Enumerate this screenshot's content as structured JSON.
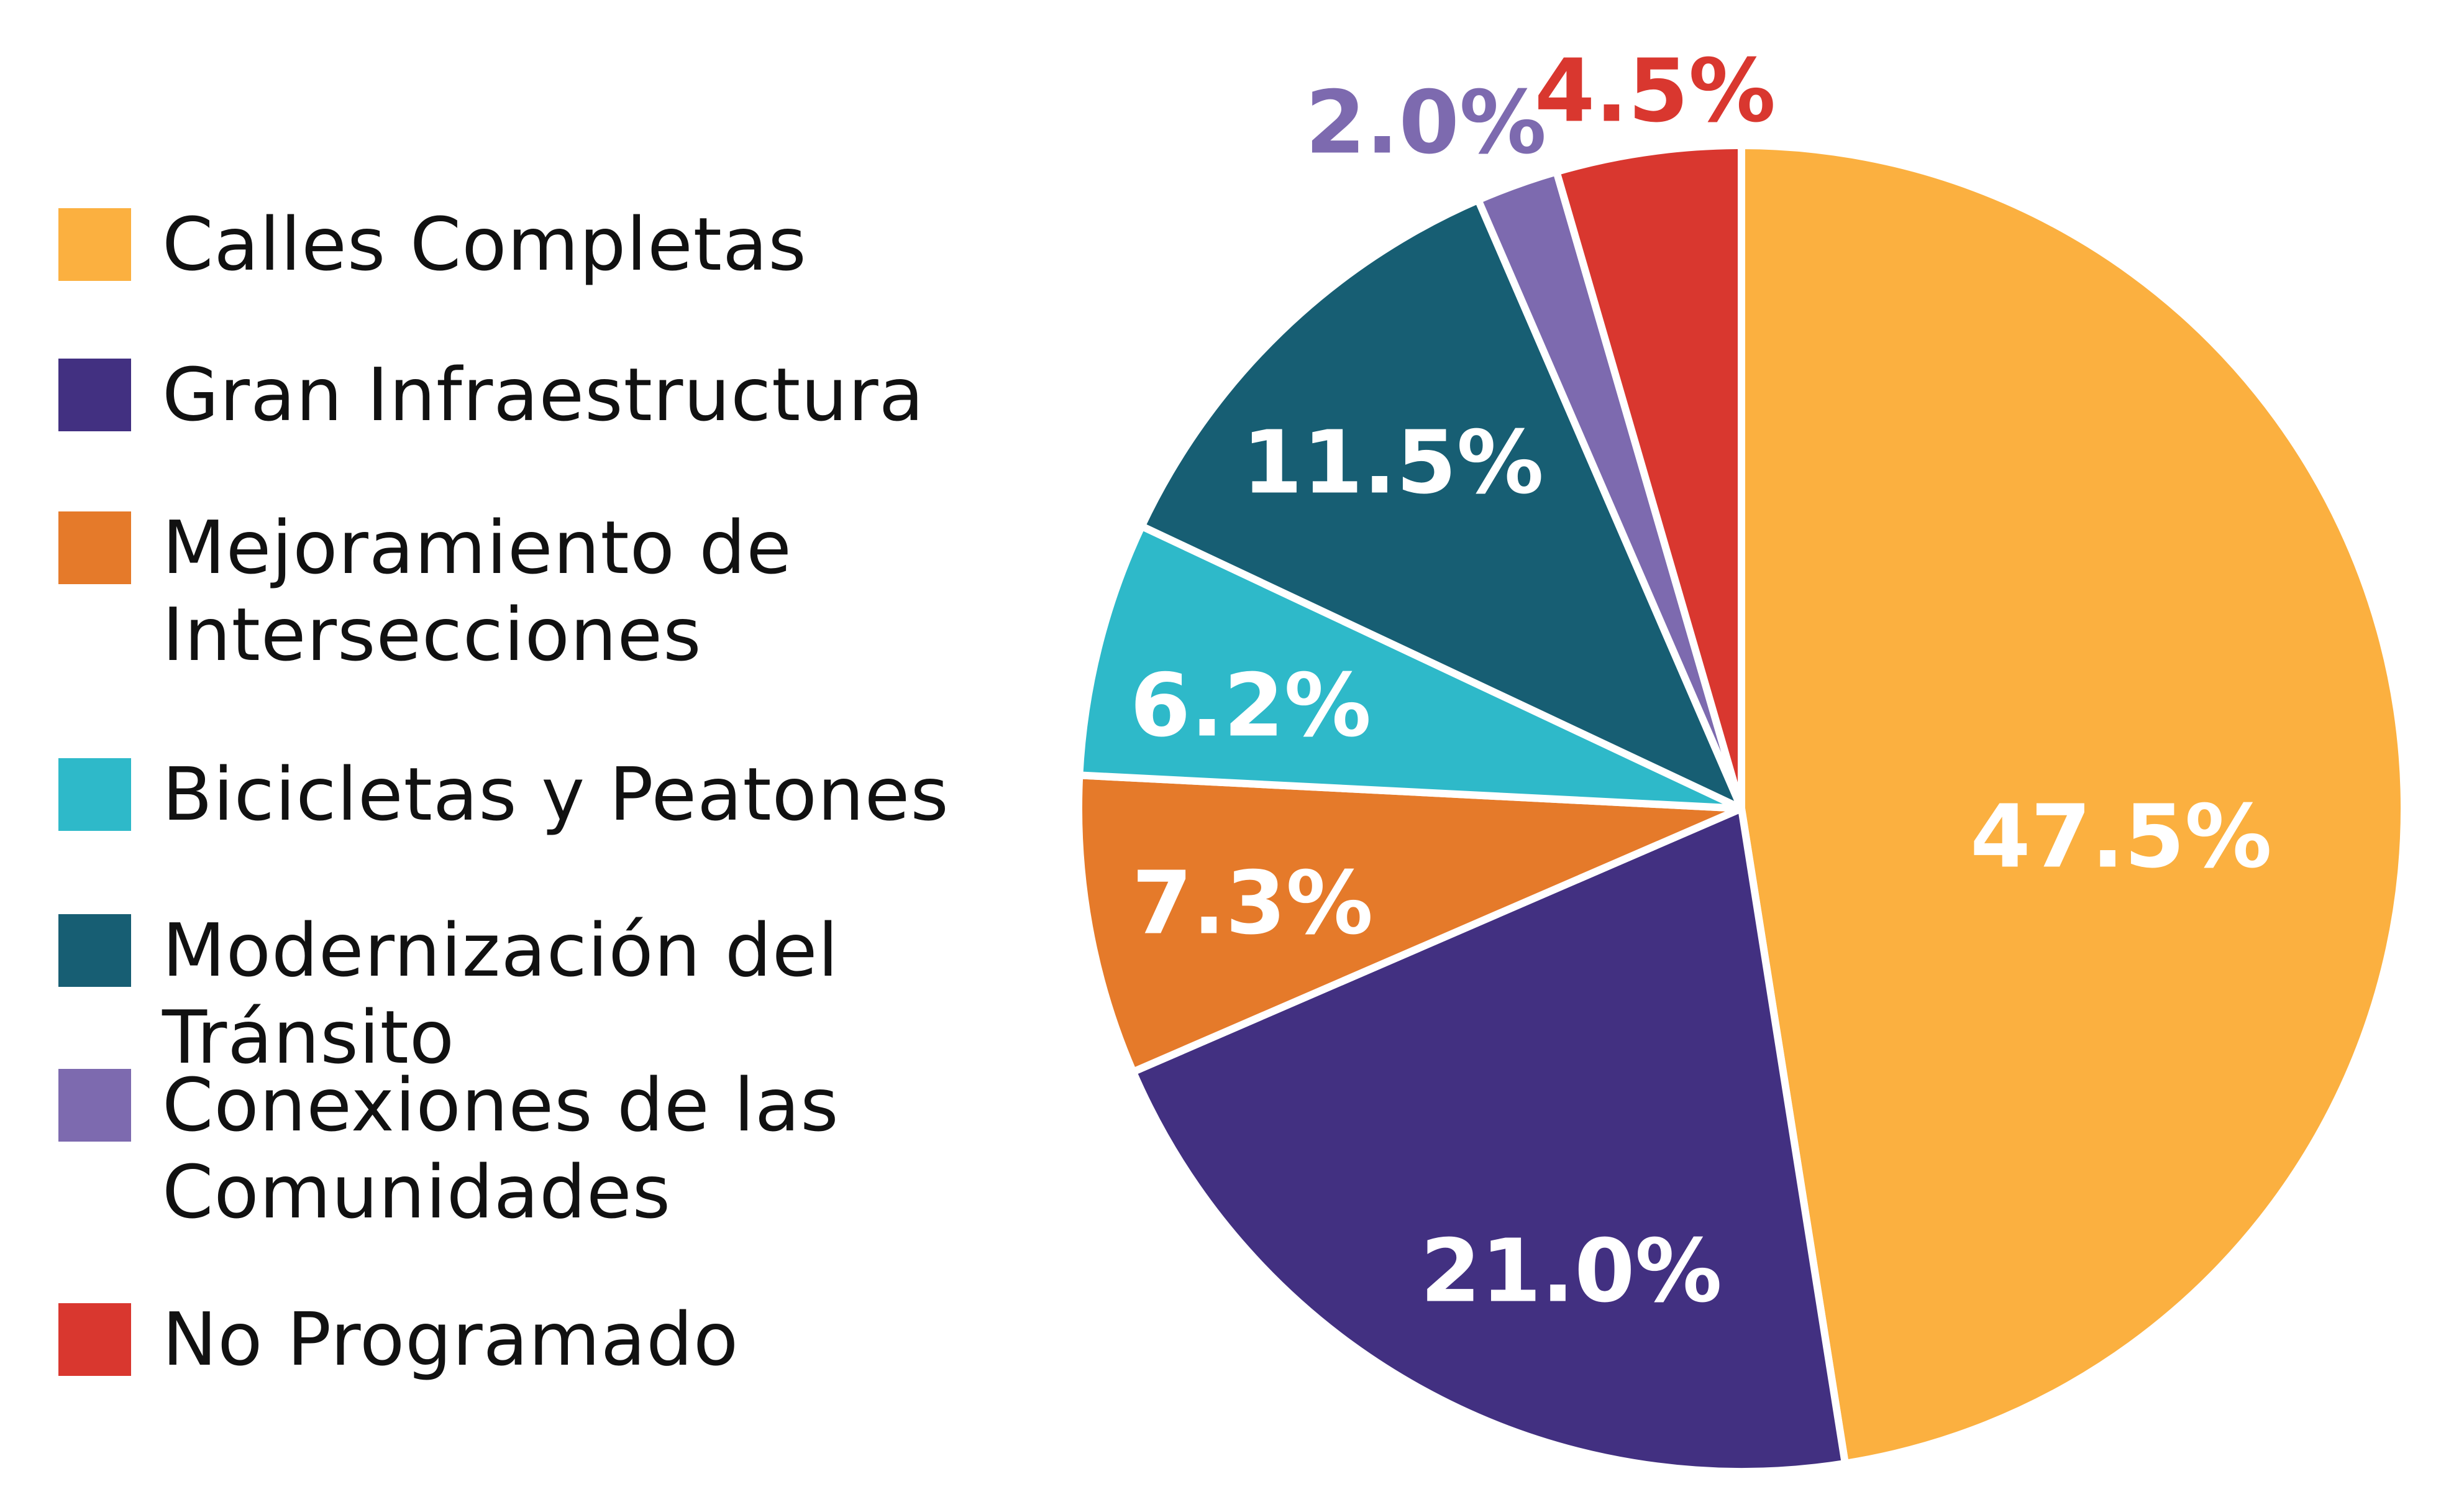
{
  "chart_data": {
    "type": "pie",
    "start_angle": "12 o'clock",
    "direction": "clockwise",
    "legend_position": "left",
    "slices": [
      {
        "label": "Calles Completas",
        "value": 47.5,
        "value_label": "47.5%",
        "color": "#FBB040",
        "label_color": "#FFFFFF"
      },
      {
        "label": "Gran Infraestructura",
        "value": 21.0,
        "value_label": "21.0%",
        "color": "#423081",
        "label_color": "#FFFFFF"
      },
      {
        "label": "Mejoramiento de\nIntersecciones",
        "value": 7.3,
        "value_label": "7.3%",
        "color": "#E57A2A",
        "label_color": "#FFFFFF"
      },
      {
        "label": "Bicicletas y Peatones",
        "value": 6.2,
        "value_label": "6.2%",
        "color": "#2EB9C9",
        "label_color": "#FFFFFF"
      },
      {
        "label": "Modernización del Tránsito",
        "value": 11.5,
        "value_label": "11.5%",
        "color": "#175E73",
        "label_color": "#FFFFFF"
      },
      {
        "label": "Conexiones de las\nComunidades",
        "value": 2.0,
        "value_label": "2.0%",
        "color": "#7D6AAF",
        "label_color": "#7D6AAF"
      },
      {
        "label": "No Programado",
        "value": 4.5,
        "value_label": "4.5%",
        "color": "#D9372F",
        "label_color": "#D9372F"
      }
    ]
  }
}
